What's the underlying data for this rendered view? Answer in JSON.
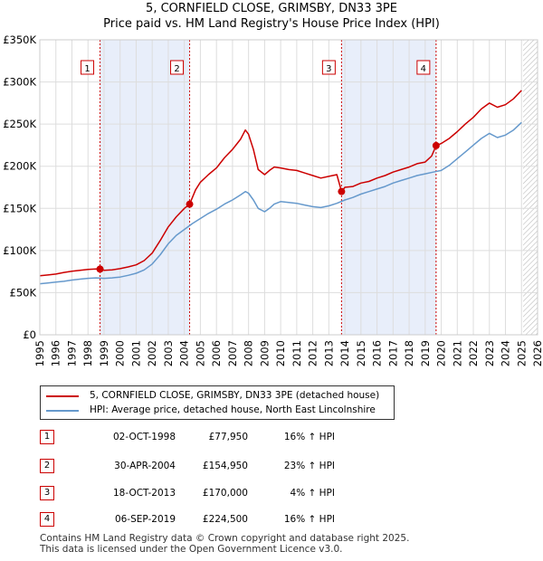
{
  "title": "5, CORNFIELD CLOSE, GRIMSBY, DN33 3PE",
  "subtitle": "Price paid vs. HM Land Registry's House Price Index (HPI)",
  "chart_data": {
    "type": "line",
    "title": "5, CORNFIELD CLOSE, GRIMSBY, DN33 3PE",
    "subtitle": "Price paid vs. HM Land Registry's House Price Index (HPI)",
    "ylim": [
      0,
      350000
    ],
    "xlim": [
      1995,
      2026
    ],
    "y_ticks": [
      0,
      50000,
      100000,
      150000,
      200000,
      250000,
      300000,
      350000
    ],
    "y_tick_labels": [
      "£0",
      "£50K",
      "£100K",
      "£150K",
      "£200K",
      "£250K",
      "£300K",
      "£350K"
    ],
    "x_ticks": [
      1995,
      1996,
      1997,
      1998,
      1999,
      2000,
      2001,
      2002,
      2003,
      2004,
      2005,
      2006,
      2007,
      2008,
      2009,
      2010,
      2011,
      2012,
      2013,
      2014,
      2015,
      2016,
      2017,
      2018,
      2019,
      2020,
      2021,
      2022,
      2023,
      2024,
      2025,
      2026
    ],
    "x_tick_labels": [
      "1995",
      "1996",
      "1997",
      "1998",
      "1999",
      "2000",
      "2001",
      "2002",
      "2003",
      "2004",
      "2005",
      "2006",
      "2007",
      "2008",
      "2009",
      "2010",
      "2011",
      "2012",
      "2013",
      "2014",
      "2015",
      "2016",
      "2017",
      "2018",
      "2019",
      "2020",
      "2021",
      "2022",
      "2023",
      "2024",
      "2025",
      "2026"
    ],
    "grid": true,
    "shaded_periods": [
      [
        1998.75,
        2004.33
      ],
      [
        2013.79,
        2019.68
      ]
    ],
    "future_hatch_from": 2025.1,
    "series": [
      {
        "name": "5, CORNFIELD CLOSE, GRIMSBY, DN33 3PE (detached house)",
        "color": "#cc0000",
        "x": [
          1995.0,
          1995.5,
          1996.0,
          1996.5,
          1997.0,
          1997.5,
          1998.0,
          1998.5,
          1998.75,
          1999.0,
          1999.5,
          2000.0,
          2000.5,
          2001.0,
          2001.5,
          2002.0,
          2002.5,
          2003.0,
          2003.5,
          2004.0,
          2004.33,
          2004.7,
          2005.0,
          2005.5,
          2006.0,
          2006.5,
          2007.0,
          2007.5,
          2007.8,
          2008.0,
          2008.3,
          2008.6,
          2009.0,
          2009.3,
          2009.6,
          2010.0,
          2010.5,
          2011.0,
          2011.5,
          2012.0,
          2012.5,
          2013.0,
          2013.5,
          2013.79,
          2014.0,
          2014.5,
          2015.0,
          2015.5,
          2016.0,
          2016.5,
          2017.0,
          2017.5,
          2018.0,
          2018.5,
          2019.0,
          2019.4,
          2019.68,
          2020.0,
          2020.5,
          2021.0,
          2021.5,
          2022.0,
          2022.5,
          2023.0,
          2023.5,
          2024.0,
          2024.5,
          2025.0
        ],
        "values": [
          70000,
          71000,
          72000,
          74000,
          75500,
          76500,
          77500,
          78000,
          77950,
          76500,
          77000,
          78500,
          80500,
          83000,
          88000,
          97000,
          112000,
          128000,
          140000,
          150000,
          154950,
          172000,
          181000,
          190000,
          198000,
          210000,
          220000,
          232000,
          243000,
          238000,
          220000,
          196000,
          190000,
          195000,
          199000,
          198000,
          196000,
          195000,
          192000,
          189000,
          186000,
          188000,
          190000,
          170000,
          175000,
          176000,
          180000,
          182000,
          186000,
          189000,
          193000,
          196000,
          199000,
          203000,
          205000,
          212000,
          224500,
          227000,
          233000,
          241000,
          250000,
          258000,
          268000,
          275000,
          270000,
          273000,
          280000,
          290000
        ]
      },
      {
        "name": "HPI: Average price, detached house, North East Lincolnshire",
        "color": "#6699cc",
        "x": [
          1995.0,
          1995.5,
          1996.0,
          1996.5,
          1997.0,
          1997.5,
          1998.0,
          1998.5,
          1999.0,
          1999.5,
          2000.0,
          2000.5,
          2001.0,
          2001.5,
          2002.0,
          2002.5,
          2003.0,
          2003.5,
          2004.0,
          2004.5,
          2005.0,
          2005.5,
          2006.0,
          2006.5,
          2007.0,
          2007.5,
          2007.8,
          2008.0,
          2008.3,
          2008.6,
          2009.0,
          2009.3,
          2009.6,
          2010.0,
          2010.5,
          2011.0,
          2011.5,
          2012.0,
          2012.5,
          2013.0,
          2013.5,
          2014.0,
          2014.5,
          2015.0,
          2015.5,
          2016.0,
          2016.5,
          2017.0,
          2017.5,
          2018.0,
          2018.5,
          2019.0,
          2019.5,
          2020.0,
          2020.5,
          2021.0,
          2021.5,
          2022.0,
          2022.5,
          2023.0,
          2023.5,
          2024.0,
          2024.5,
          2025.0
        ],
        "values": [
          60500,
          61500,
          62500,
          63500,
          65000,
          66000,
          67000,
          67500,
          67000,
          67500,
          68500,
          70500,
          73000,
          77000,
          84000,
          95000,
          108000,
          118000,
          125000,
          132000,
          138000,
          144000,
          149000,
          155000,
          160000,
          166000,
          170000,
          168000,
          160000,
          150000,
          146000,
          150000,
          155000,
          158000,
          157000,
          156000,
          154000,
          152000,
          151000,
          153000,
          156000,
          160000,
          163000,
          167000,
          170000,
          173000,
          176000,
          180000,
          183000,
          186000,
          189000,
          191000,
          193000,
          195000,
          201000,
          209000,
          217000,
          225000,
          233000,
          239000,
          234000,
          237000,
          243000,
          252000
        ]
      }
    ],
    "sales": [
      {
        "label": "1",
        "x": 1998.75,
        "value": 77950
      },
      {
        "label": "2",
        "x": 2004.33,
        "value": 154950
      },
      {
        "label": "3",
        "x": 2013.79,
        "value": 170000
      },
      {
        "label": "4",
        "x": 2019.68,
        "value": 224500
      }
    ]
  },
  "legend": {
    "property_label": "5, CORNFIELD CLOSE, GRIMSBY, DN33 3PE (detached house)",
    "hpi_label": "HPI: Average price, detached house, North East Lincolnshire",
    "property_color": "#cc0000",
    "hpi_color": "#6699cc"
  },
  "transactions": [
    {
      "num": "1",
      "date": "02-OCT-1998",
      "price": "£77,950",
      "hpi": "16% ↑ HPI"
    },
    {
      "num": "2",
      "date": "30-APR-2004",
      "price": "£154,950",
      "hpi": "23% ↑ HPI"
    },
    {
      "num": "3",
      "date": "18-OCT-2013",
      "price": "£170,000",
      "hpi": "4% ↑ HPI"
    },
    {
      "num": "4",
      "date": "06-SEP-2019",
      "price": "£224,500",
      "hpi": "16% ↑ HPI"
    }
  ],
  "footer": {
    "line1": "Contains HM Land Registry data © Crown copyright and database right 2025.",
    "line2": "This data is licensed under the Open Government Licence v3.0."
  }
}
